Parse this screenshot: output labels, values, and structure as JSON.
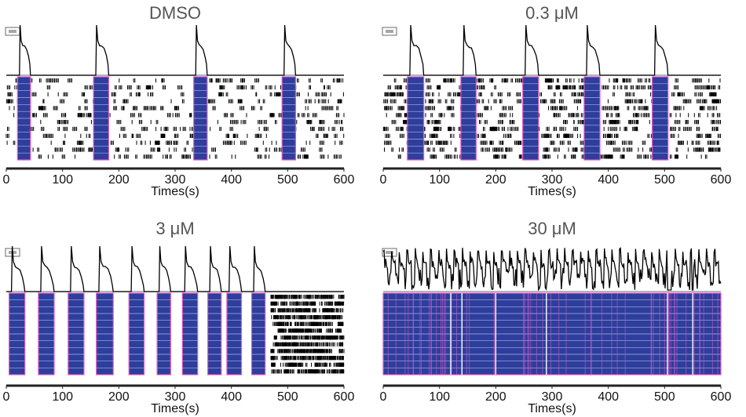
{
  "chart_data": [
    {
      "type": "raster",
      "title": "DMSO",
      "xlabel": "Times(s)",
      "xticks": [
        0,
        100,
        200,
        300,
        400,
        500,
        600
      ],
      "xlim": [
        0,
        600
      ],
      "bursts": [
        [
          20,
          43
        ],
        [
          155,
          182
        ],
        [
          333,
          357
        ],
        [
          490,
          514
        ]
      ],
      "tonic_spikes": "sparse",
      "icon": "="
    },
    {
      "type": "raster",
      "title": "0.3 μM",
      "xlabel": "Times(s)",
      "xticks": [
        0,
        100,
        200,
        300,
        400,
        500,
        600
      ],
      "xlim": [
        0,
        600
      ],
      "bursts": [
        [
          43,
          72
        ],
        [
          138,
          165
        ],
        [
          248,
          276
        ],
        [
          357,
          385
        ],
        [
          478,
          506
        ]
      ],
      "tonic_spikes": "moderate",
      "icon": "="
    },
    {
      "type": "raster",
      "title": "3 μM",
      "xlabel": "Times(s)",
      "xticks": [
        0,
        100,
        200,
        300,
        400,
        500,
        600
      ],
      "xlim": [
        0,
        600
      ],
      "bursts": [
        [
          5,
          33
        ],
        [
          57,
          85
        ],
        [
          110,
          138
        ],
        [
          160,
          190
        ],
        [
          218,
          245
        ],
        [
          268,
          292
        ],
        [
          313,
          340
        ],
        [
          358,
          382
        ],
        [
          392,
          418
        ],
        [
          436,
          460
        ]
      ],
      "tonic_spikes": "after_470",
      "icon": "="
    },
    {
      "type": "raster",
      "title": "30 μM",
      "xlabel": "Times(s)",
      "xticks": [
        0,
        100,
        200,
        300,
        400,
        500,
        600
      ],
      "xlim": [
        0,
        600
      ],
      "bursts": [
        [
          0,
          600
        ]
      ],
      "tonic_spikes": "continuous",
      "icon": "="
    }
  ],
  "colors": {
    "burst_fill": "#2d3e9c",
    "burst_edge": "#e056c8",
    "spike": "#000000",
    "trace": "#000000",
    "baseline": "#888888",
    "axis": "#222222",
    "title": "#555555"
  }
}
